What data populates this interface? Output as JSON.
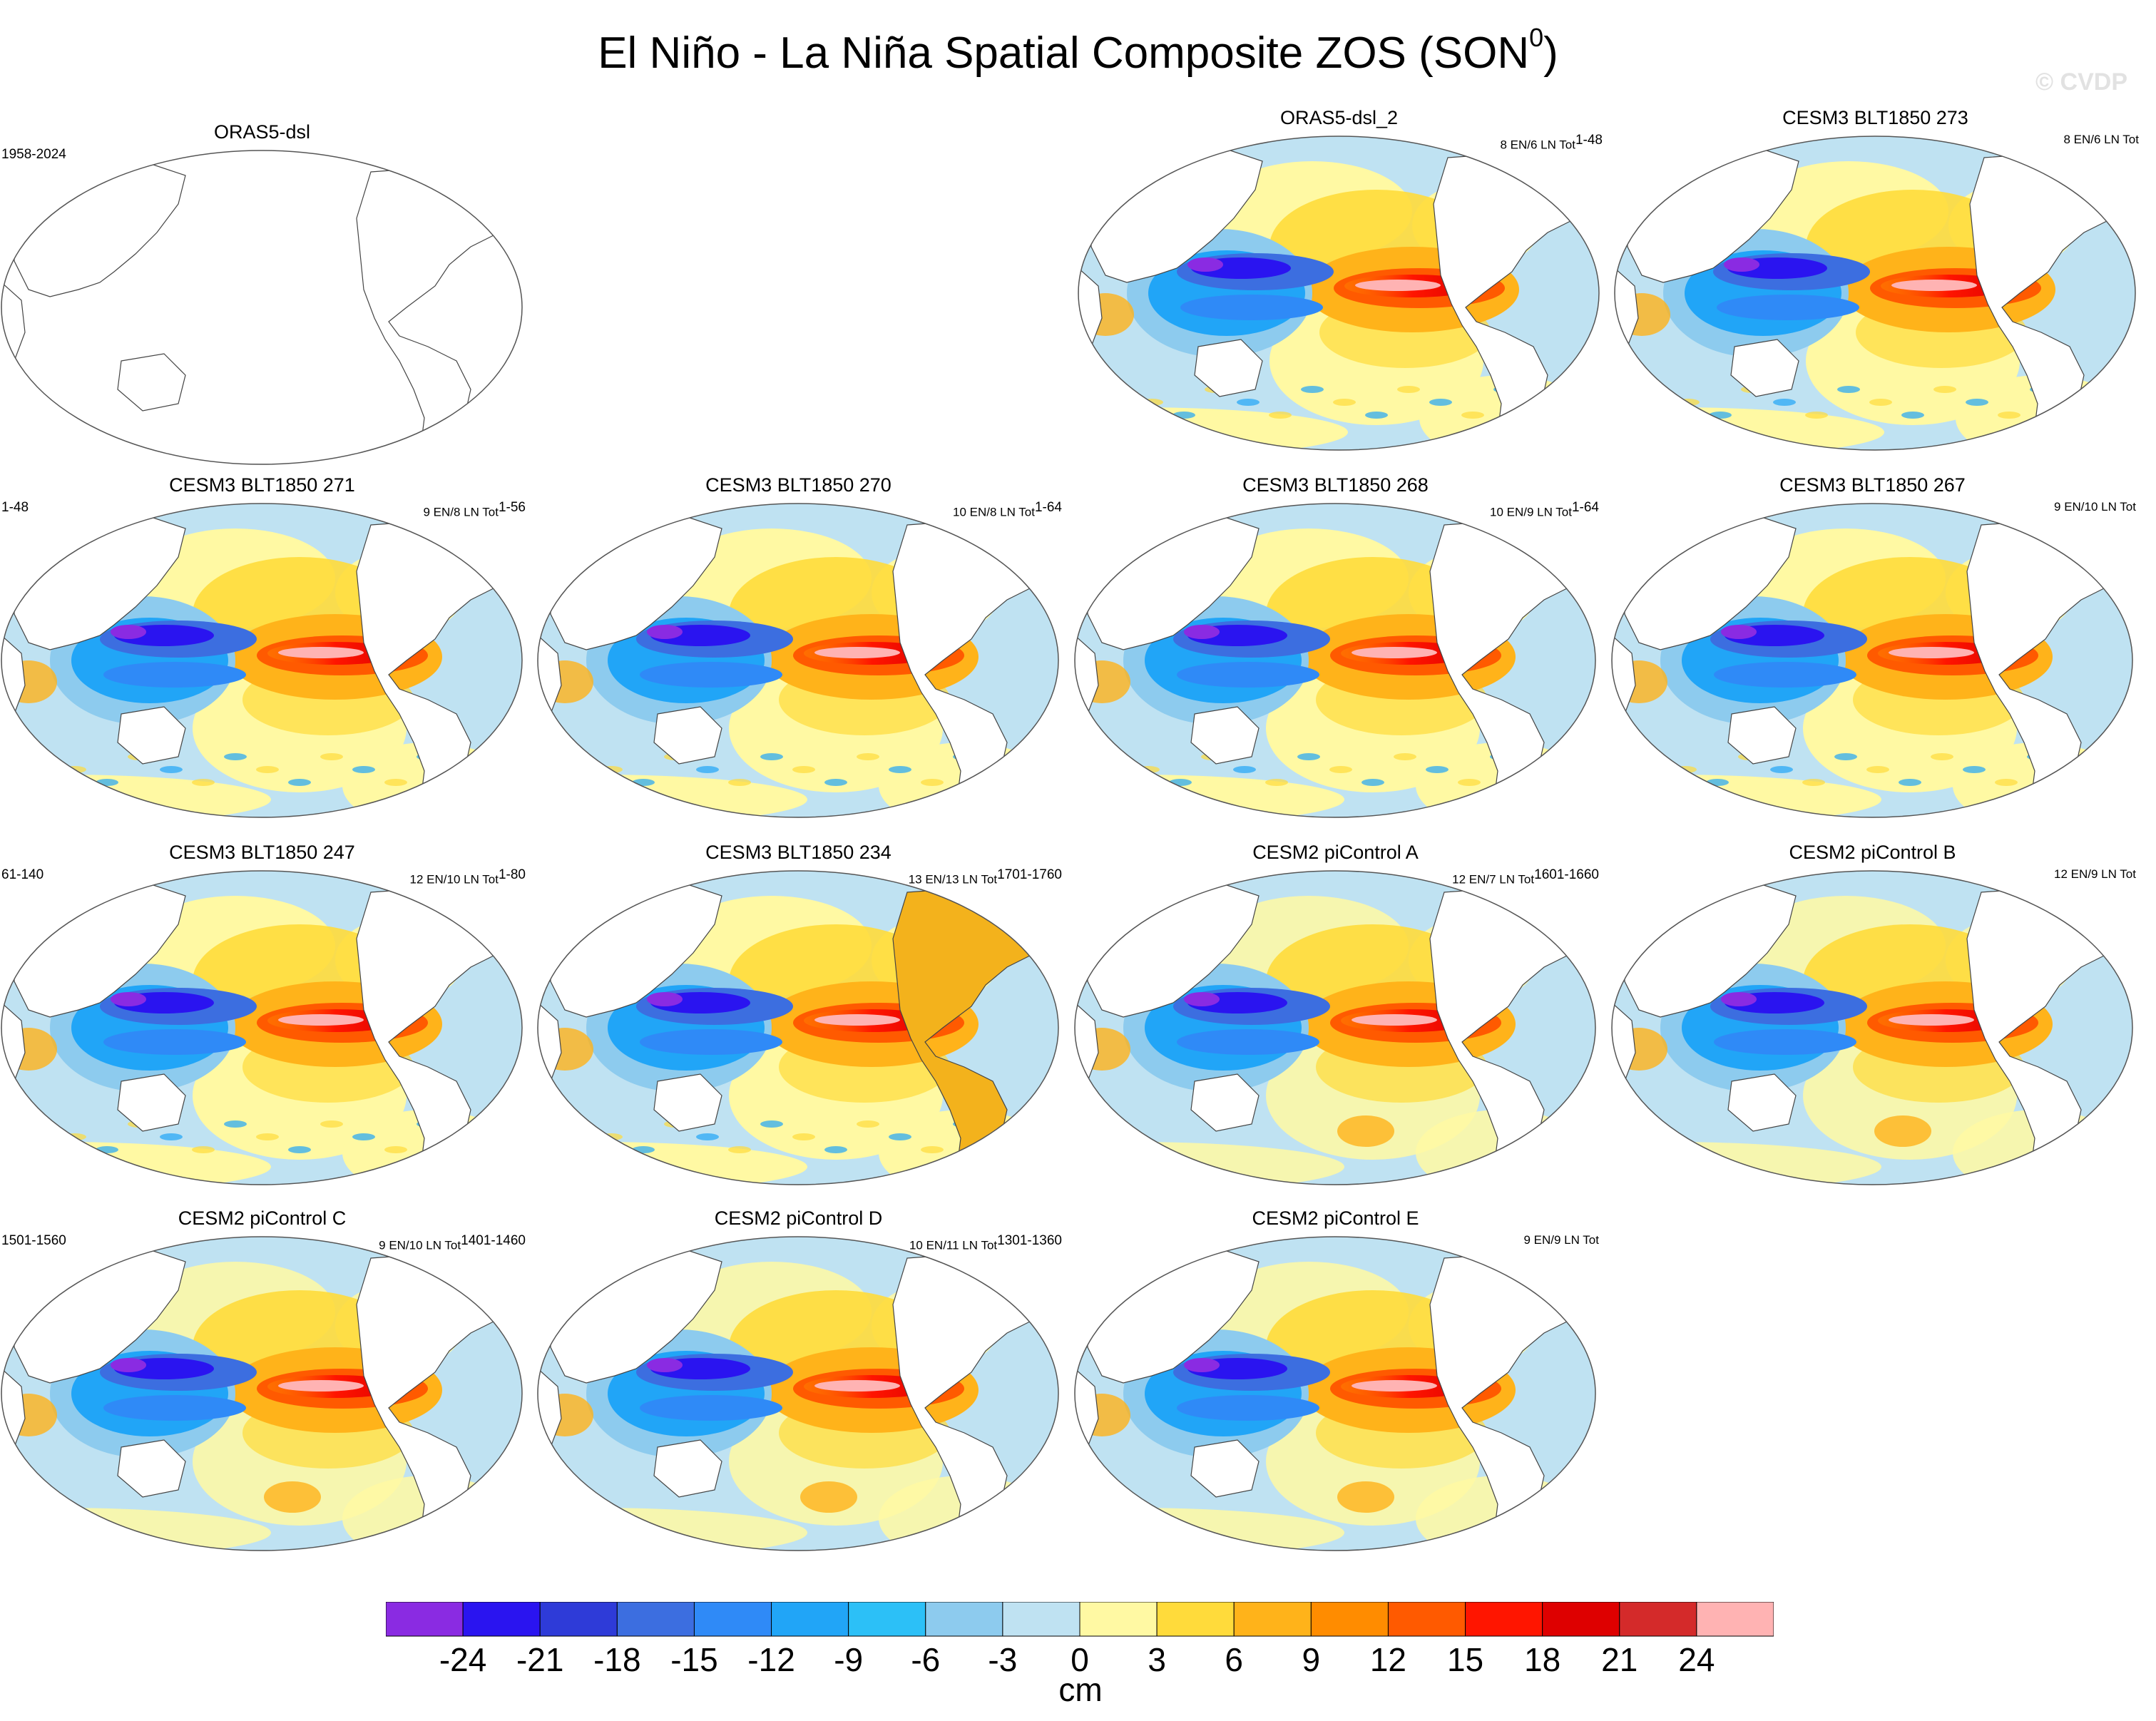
{
  "title": {
    "main": "El Niño - La Niña Spatial Composite ZOS (SON",
    "sup": "0",
    "close": ")"
  },
  "watermark": "© CVDP",
  "colorbar": {
    "unit": "cm",
    "labels": [
      "-24",
      "-21",
      "-18",
      "-15",
      "-12",
      "-9",
      "-6",
      "-3",
      "0",
      "3",
      "6",
      "9",
      "12",
      "15",
      "18",
      "21",
      "24"
    ],
    "colors": [
      "#8a2be2",
      "#2a14f0",
      "#2e3bd8",
      "#3c6ee0",
      "#2f8af7",
      "#21a5f7",
      "#2cc0f7",
      "#8dcbee",
      "#bfe2f2",
      "#fff9a3",
      "#ffdb3b",
      "#ffb31a",
      "#ff8c00",
      "#ff5a00",
      "#ff1500",
      "#de0000",
      "#d42a2a",
      "#ffb3b3"
    ]
  },
  "panels": [
    {
      "title": "ORAS5-dsl",
      "left": "1958-2024",
      "right": "",
      "sup": "",
      "style": "blank"
    },
    {
      "title": "ORAS5-dsl_2",
      "left": "",
      "right": "8 EN/6 LN Tot",
      "sup": "1-48",
      "style": "obs"
    },
    {
      "title": "CESM3 BLT1850 273",
      "left": "",
      "right": "8 EN/6 LN Tot",
      "sup": "",
      "style": "model"
    },
    {
      "title": "CESM3 BLT1850 271",
      "left": "1-48",
      "right": "9 EN/8 LN Tot",
      "sup": "1-56",
      "style": "model"
    },
    {
      "title": "CESM3 BLT1850 270",
      "left": "",
      "right": "10 EN/8 LN Tot",
      "sup": "1-64",
      "style": "model"
    },
    {
      "title": "CESM3 BLT1850 268",
      "left": "",
      "right": "10 EN/9 LN Tot",
      "sup": "1-64",
      "style": "model"
    },
    {
      "title": "CESM3 BLT1850 267",
      "left": "",
      "right": "9 EN/10 LN Tot",
      "sup": "",
      "style": "model"
    },
    {
      "title": "CESM3 BLT1850 247",
      "left": "61-140",
      "right": "12 EN/10 LN Tot",
      "sup": "1-80",
      "style": "model"
    },
    {
      "title": "CESM3 BLT1850 234",
      "left": "",
      "right": "13 EN/13 LN Tot",
      "sup": "1701-1760",
      "style": "land"
    },
    {
      "title": "CESM2 piControl A",
      "left": "",
      "right": "12 EN/7 LN Tot",
      "sup": "1601-1660",
      "style": "smooth"
    },
    {
      "title": "CESM2 piControl B",
      "left": "",
      "right": "12 EN/9 LN Tot",
      "sup": "",
      "style": "smooth"
    },
    {
      "title": "CESM2 piControl C",
      "left": "1501-1560",
      "right": "9 EN/10 LN Tot",
      "sup": "1401-1460",
      "style": "smooth"
    },
    {
      "title": "CESM2 piControl D",
      "left": "",
      "right": "10 EN/11 LN Tot",
      "sup": "1301-1360",
      "style": "smooth"
    },
    {
      "title": "CESM2 piControl E",
      "left": "",
      "right": "9 EN/9 LN Tot",
      "sup": "",
      "style": "smooth"
    }
  ]
}
